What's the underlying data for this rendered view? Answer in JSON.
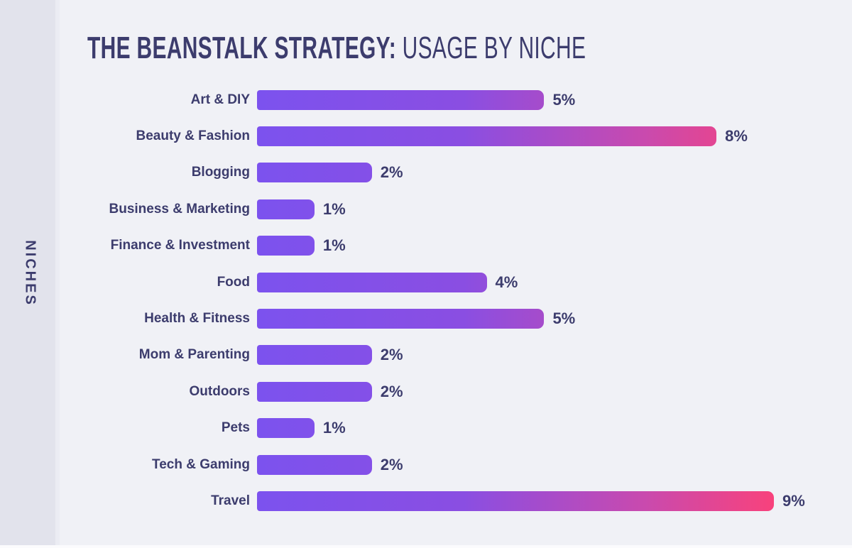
{
  "sidebar": {
    "label": "NICHES"
  },
  "title": {
    "bold": "THE BEANSTALK STRATEGY:",
    "light": " USAGE BY NICHE"
  },
  "chart_data": {
    "type": "bar",
    "orientation": "horizontal",
    "title": "THE BEANSTALK STRATEGY: USAGE BY NICHE",
    "ylabel": "NICHES",
    "xlabel": "",
    "unit": "%",
    "xlim": [
      0,
      9
    ],
    "grid": false,
    "legend": "none",
    "categories": [
      "Art & DIY",
      "Beauty & Fashion",
      "Blogging",
      "Business & Marketing",
      "Finance & Investment",
      "Food",
      "Health & Fitness",
      "Mom & Parenting",
      "Outdoors",
      "Pets",
      "Tech & Gaming",
      "Travel"
    ],
    "values": [
      5,
      8,
      2,
      1,
      1,
      4,
      5,
      2,
      2,
      1,
      2,
      9
    ],
    "value_labels": [
      "5%",
      "8%",
      "2%",
      "1%",
      "1%",
      "4%",
      "5%",
      "2%",
      "2%",
      "1%",
      "2%",
      "9%"
    ],
    "colors": {
      "bar_gradient_start": "#7c52ee",
      "bar_gradient_p2": "#8a4ee2",
      "bar_gradient_mid": "#c94aae",
      "bar_gradient_end": "#f8427c",
      "text": "#3c3c6d",
      "main_bg": "#f0f1f6",
      "sidebar_bg": "#e2e3ec",
      "divider": "#ebecf3"
    }
  }
}
